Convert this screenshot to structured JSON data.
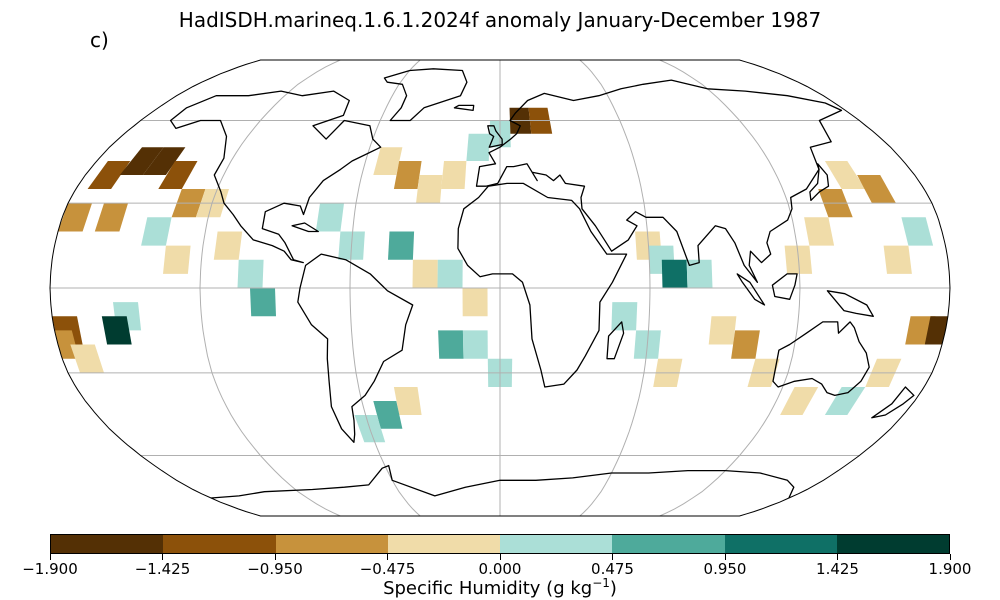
{
  "title": "HadISDH.marineq.1.6.1.2024f anomaly January-December 1987",
  "panel_label": "c)",
  "map": {
    "projection": "robinson",
    "graticule": true,
    "land_fill": "none",
    "coast_color": "#000000",
    "grid_color": "#b0b0b0",
    "anomaly_cells": [
      {
        "lon": -170,
        "lat": 40,
        "level": 1
      },
      {
        "lon": -160,
        "lat": 45,
        "level": 0
      },
      {
        "lon": -150,
        "lat": 45,
        "level": 0
      },
      {
        "lon": -140,
        "lat": 40,
        "level": 1
      },
      {
        "lon": -175,
        "lat": 25,
        "level": 2
      },
      {
        "lon": -160,
        "lat": 25,
        "level": 2
      },
      {
        "lon": -130,
        "lat": 30,
        "level": 2
      },
      {
        "lon": -120,
        "lat": 30,
        "level": 3
      },
      {
        "lon": -140,
        "lat": 20,
        "level": 4
      },
      {
        "lon": -130,
        "lat": 10,
        "level": 3
      },
      {
        "lon": -110,
        "lat": 15,
        "level": 3
      },
      {
        "lon": -100,
        "lat": 5,
        "level": 4
      },
      {
        "lon": -95,
        "lat": -5,
        "level": 5
      },
      {
        "lon": -150,
        "lat": -10,
        "level": 4
      },
      {
        "lon": -155,
        "lat": -15,
        "level": 7
      },
      {
        "lon": -175,
        "lat": -15,
        "level": 1
      },
      {
        "lon": -178,
        "lat": -20,
        "level": 2
      },
      {
        "lon": -170,
        "lat": -25,
        "level": 3
      },
      {
        "lon": -50,
        "lat": 45,
        "level": 3
      },
      {
        "lon": -40,
        "lat": 40,
        "level": 2
      },
      {
        "lon": -30,
        "lat": 35,
        "level": 3
      },
      {
        "lon": -20,
        "lat": 40,
        "level": 3
      },
      {
        "lon": -10,
        "lat": 50,
        "level": 4
      },
      {
        "lon": 0,
        "lat": 55,
        "level": 4
      },
      {
        "lon": 10,
        "lat": 60,
        "level": 0
      },
      {
        "lon": 20,
        "lat": 60,
        "level": 1
      },
      {
        "lon": -60,
        "lat": 15,
        "level": 4
      },
      {
        "lon": -70,
        "lat": 25,
        "level": 4
      },
      {
        "lon": -40,
        "lat": 15,
        "level": 5
      },
      {
        "lon": -30,
        "lat": 5,
        "level": 3
      },
      {
        "lon": -20,
        "lat": 5,
        "level": 4
      },
      {
        "lon": -10,
        "lat": -5,
        "level": 3
      },
      {
        "lon": -20,
        "lat": -20,
        "level": 5
      },
      {
        "lon": -10,
        "lat": -20,
        "level": 4
      },
      {
        "lon": 0,
        "lat": -30,
        "level": 4
      },
      {
        "lon": -40,
        "lat": -40,
        "level": 3
      },
      {
        "lon": -50,
        "lat": -45,
        "level": 5
      },
      {
        "lon": -60,
        "lat": -50,
        "level": 4
      },
      {
        "lon": 60,
        "lat": 15,
        "level": 3
      },
      {
        "lon": 65,
        "lat": 10,
        "level": 4
      },
      {
        "lon": 70,
        "lat": 5,
        "level": 6
      },
      {
        "lon": 80,
        "lat": 5,
        "level": 4
      },
      {
        "lon": 50,
        "lat": -10,
        "level": 4
      },
      {
        "lon": 60,
        "lat": -20,
        "level": 4
      },
      {
        "lon": 70,
        "lat": -30,
        "level": 3
      },
      {
        "lon": 90,
        "lat": -15,
        "level": 3
      },
      {
        "lon": 100,
        "lat": -20,
        "level": 2
      },
      {
        "lon": 110,
        "lat": -30,
        "level": 3
      },
      {
        "lon": 120,
        "lat": 10,
        "level": 3
      },
      {
        "lon": 130,
        "lat": 20,
        "level": 3
      },
      {
        "lon": 140,
        "lat": 30,
        "level": 2
      },
      {
        "lon": 150,
        "lat": 40,
        "level": 3
      },
      {
        "lon": 160,
        "lat": 35,
        "level": 2
      },
      {
        "lon": 170,
        "lat": 20,
        "level": 4
      },
      {
        "lon": 160,
        "lat": 10,
        "level": 3
      },
      {
        "lon": 170,
        "lat": -15,
        "level": 2
      },
      {
        "lon": 178,
        "lat": -15,
        "level": 0
      },
      {
        "lon": 160,
        "lat": -30,
        "level": 3
      },
      {
        "lon": 150,
        "lat": -40,
        "level": 4
      },
      {
        "lon": 130,
        "lat": -40,
        "level": 3
      }
    ]
  },
  "colorbar": {
    "label_main": "Specific Humidity (g kg",
    "label_sup": "−1",
    "label_end": ")",
    "colors": [
      "#543005",
      "#8c510a",
      "#c7923c",
      "#f0dca9",
      "#abdfd7",
      "#4eaa9b",
      "#0f7066",
      "#003c30"
    ],
    "ticks": [
      "−1.900",
      "−1.425",
      "−0.950",
      "−0.475",
      "0.000",
      "0.475",
      "0.950",
      "1.425",
      "1.900"
    ]
  }
}
